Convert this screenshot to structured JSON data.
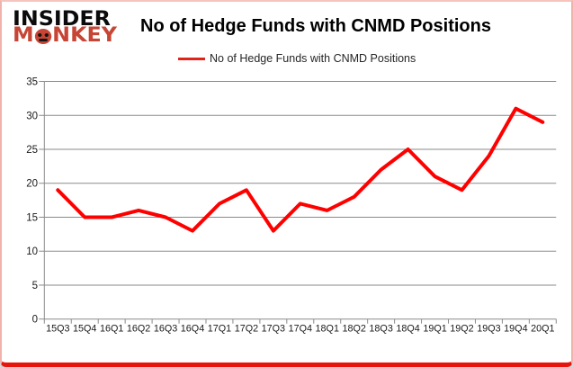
{
  "logo": {
    "line1": "INSIDER",
    "line2_pre": "M",
    "line2_post": "NKEY"
  },
  "header": {
    "title": "No of Hedge Funds with CNMD Positions"
  },
  "legend": {
    "label": "No of Hedge Funds with CNMD Positions",
    "swatch_color": "#e2231a"
  },
  "chart_data": {
    "type": "line",
    "title": "No of Hedge Funds with CNMD Positions",
    "categories": [
      "15Q3",
      "15Q4",
      "16Q1",
      "16Q2",
      "16Q3",
      "16Q4",
      "17Q1",
      "17Q2",
      "17Q3",
      "17Q4",
      "18Q1",
      "18Q2",
      "18Q3",
      "18Q4",
      "19Q1",
      "19Q2",
      "19Q3",
      "19Q4",
      "20Q1"
    ],
    "series": [
      {
        "name": "No of Hedge Funds with CNMD Positions",
        "values": [
          19,
          15,
          15,
          16,
          15,
          13,
          17,
          19,
          13,
          17,
          16,
          18,
          22,
          25,
          21,
          19,
          24,
          31,
          29
        ]
      }
    ],
    "xlabel": "",
    "ylabel": "",
    "ylim": [
      0,
      35
    ],
    "yticks": [
      0,
      5,
      10,
      15,
      20,
      25,
      30,
      35
    ],
    "grid": true,
    "legend_position": "top-center",
    "line_color": "#ff0000",
    "grid_color": "#8a8a8a",
    "axis_color": "#8a8a8a",
    "tick_label_color": "#1a1a1a"
  }
}
